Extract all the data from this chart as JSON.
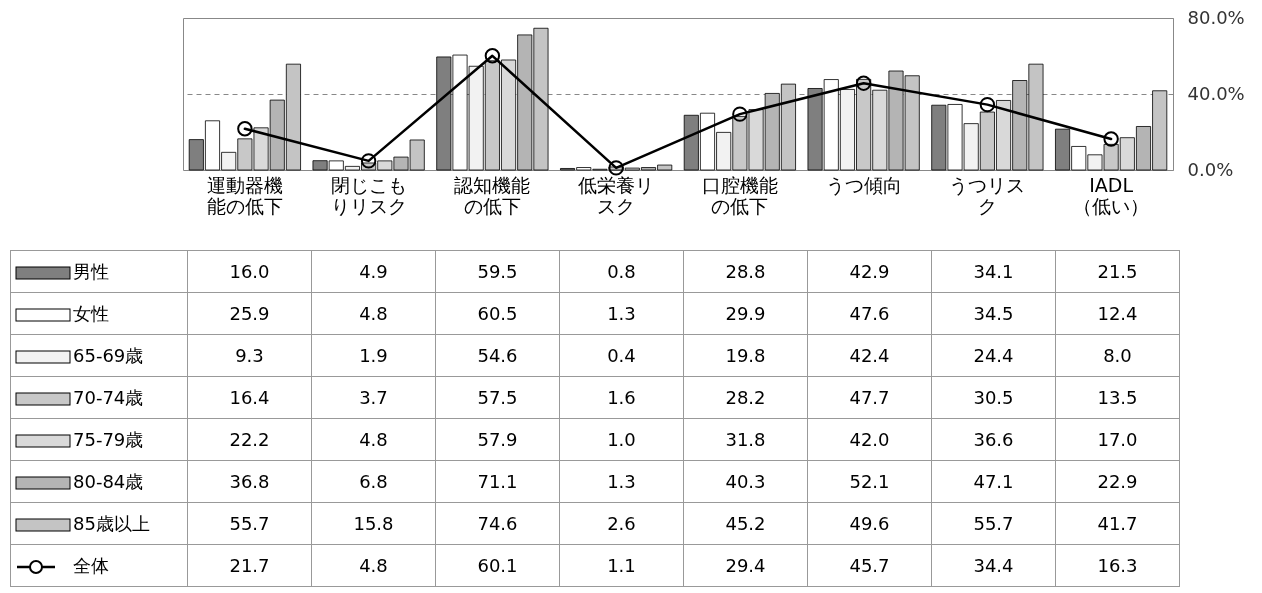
{
  "chart_data": {
    "type": "bar",
    "categories": [
      "運動器機能の低下",
      "閉じこもりリスク",
      "認知機能の低下",
      "低栄養リスク",
      "口腔機能の低下",
      "うつ傾向",
      "うつリスク",
      "IADL（低い）"
    ],
    "ylim": [
      0,
      80
    ],
    "yticks": [
      {
        "value": 0,
        "label": "0.0%"
      },
      {
        "value": 40,
        "label": "40.0%"
      },
      {
        "value": 80,
        "label": "80.0%"
      }
    ],
    "grid": "y",
    "legend": "bottom left",
    "marker": "circle",
    "line_style": "solid",
    "series": [
      {
        "name": "男性",
        "color": "#7f7f7f",
        "values": [
          16.0,
          4.9,
          59.5,
          0.8,
          28.8,
          42.9,
          34.1,
          21.5
        ],
        "value_labels": [
          "16.0",
          "4.9",
          "59.5",
          "0.8",
          "28.8",
          "42.9",
          "34.1",
          "21.5"
        ]
      },
      {
        "name": "女性",
        "color": "#ffffff",
        "values": [
          25.9,
          4.8,
          60.5,
          1.3,
          29.9,
          47.6,
          34.5,
          12.4
        ],
        "value_labels": [
          "25.9",
          "4.8",
          "60.5",
          "1.3",
          "29.9",
          "47.6",
          "34.5",
          "12.4"
        ]
      },
      {
        "name": "65-69歳",
        "color": "#f2f2f2",
        "values": [
          9.3,
          1.9,
          54.6,
          0.4,
          19.8,
          42.4,
          24.4,
          8.0
        ],
        "value_labels": [
          "9.3",
          "1.9",
          "54.6",
          "0.4",
          "19.8",
          "42.4",
          "24.4",
          "8.0"
        ]
      },
      {
        "name": "70-74歳",
        "color": "#c8c8c8",
        "values": [
          16.4,
          3.7,
          57.5,
          1.6,
          28.2,
          47.7,
          30.5,
          13.5
        ],
        "value_labels": [
          "16.4",
          "3.7",
          "57.5",
          "1.6",
          "28.2",
          "47.7",
          "30.5",
          "13.5"
        ]
      },
      {
        "name": "75-79歳",
        "color": "#d9d9d9",
        "values": [
          22.2,
          4.8,
          57.9,
          1.0,
          31.8,
          42.0,
          36.6,
          17.0
        ],
        "value_labels": [
          "22.2",
          "4.8",
          "57.9",
          "1.0",
          "31.8",
          "42.0",
          "36.6",
          "17.0"
        ]
      },
      {
        "name": "80-84歳",
        "color": "#b4b4b4",
        "values": [
          36.8,
          6.8,
          71.1,
          1.3,
          40.3,
          52.1,
          47.1,
          22.9
        ],
        "value_labels": [
          "36.8",
          "6.8",
          "71.1",
          "1.3",
          "40.3",
          "52.1",
          "47.1",
          "22.9"
        ]
      },
      {
        "name": "85歳以上",
        "color": "#c4c4c4",
        "values": [
          55.7,
          15.8,
          74.6,
          2.6,
          45.2,
          49.6,
          55.7,
          41.7
        ],
        "value_labels": [
          "55.7",
          "15.8",
          "74.6",
          "2.6",
          "45.2",
          "49.6",
          "55.7",
          "41.7"
        ]
      },
      {
        "name": "全体",
        "type": "line",
        "color": "#000000",
        "values": [
          21.7,
          4.8,
          60.1,
          1.1,
          29.4,
          45.7,
          34.4,
          16.3
        ],
        "value_labels": [
          "21.7",
          "4.8",
          "60.1",
          "1.1",
          "29.4",
          "45.7",
          "34.4",
          "16.3"
        ]
      }
    ]
  }
}
